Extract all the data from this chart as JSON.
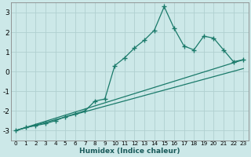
{
  "xlabel": "Humidex (Indice chaleur)",
  "xlim": [
    -0.5,
    23.5
  ],
  "ylim": [
    -3.5,
    3.5
  ],
  "xticks": [
    0,
    1,
    2,
    3,
    4,
    5,
    6,
    7,
    8,
    9,
    10,
    11,
    12,
    13,
    14,
    15,
    16,
    17,
    18,
    19,
    20,
    21,
    22,
    23
  ],
  "yticks": [
    -3,
    -2,
    -1,
    0,
    1,
    2,
    3
  ],
  "background_color": "#cce8e8",
  "grid_color": "#b0d0d0",
  "line_color": "#1a7a6a",
  "main_x": [
    0,
    1,
    2,
    3,
    4,
    5,
    6,
    7,
    8,
    9,
    10,
    11,
    12,
    13,
    14,
    15,
    16,
    17,
    18,
    19,
    20,
    21,
    22,
    23
  ],
  "main_y": [
    -3.0,
    -2.85,
    -2.75,
    -2.65,
    -2.5,
    -2.3,
    -2.15,
    -2.0,
    -1.5,
    -1.4,
    0.3,
    0.7,
    1.2,
    1.6,
    2.1,
    3.3,
    2.2,
    1.3,
    1.1,
    1.8,
    1.7,
    1.1,
    0.5,
    0.6
  ],
  "line1_x": [
    0,
    23
  ],
  "line1_y": [
    -3.0,
    0.6
  ],
  "line2_x": [
    0,
    23
  ],
  "line2_y": [
    -3.0,
    0.15
  ]
}
